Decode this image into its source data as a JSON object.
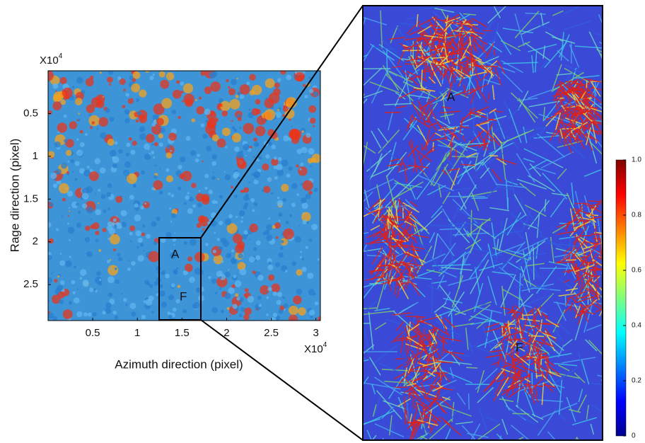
{
  "chart_data": [
    {
      "type": "heatmap",
      "x_label": "Azimuth direction (pixel)",
      "y_label": "Rage direction (pixel)",
      "x_scale": {
        "base": "X10",
        "exponent": "4"
      },
      "y_scale": {
        "base": "X10",
        "exponent": "4"
      },
      "xlim": [
        0,
        3.05
      ],
      "xticks": [
        0.5,
        1,
        1.5,
        2,
        2.5,
        3
      ],
      "ylim": [
        0,
        2.92
      ],
      "yticks": [
        0.5,
        1,
        1.5,
        2,
        2.5
      ],
      "annotations": [
        "A",
        "F"
      ]
    },
    {
      "type": "heatmap",
      "annotations": [
        "A",
        "F"
      ],
      "colorbar_lim": [
        0,
        1
      ],
      "colorbar_ticks": [
        0,
        0.2,
        0.4,
        0.6,
        0.8,
        {
          "value": 1,
          "label": "1.0"
        }
      ]
    }
  ]
}
